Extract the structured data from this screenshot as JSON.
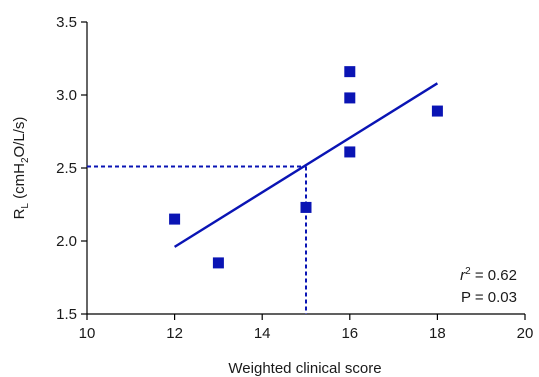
{
  "chart_data": {
    "type": "scatter",
    "xlabel": "Weighted clinical score",
    "ylabel_parts": {
      "main": "R",
      "sub": "L",
      "rest_a": " (cmH",
      "sub2": "2",
      "rest_b": "O/L/s)"
    },
    "xlim": [
      10,
      20
    ],
    "ylim": [
      1.5,
      3.5
    ],
    "x_ticks": [
      10,
      12,
      14,
      16,
      18,
      20
    ],
    "y_ticks": [
      "1.5",
      "2.0",
      "2.5",
      "3.0",
      "3.5"
    ],
    "points": [
      {
        "x": 12,
        "y": 2.15
      },
      {
        "x": 13,
        "y": 1.85
      },
      {
        "x": 15,
        "y": 2.23
      },
      {
        "x": 16,
        "y": 3.16
      },
      {
        "x": 16,
        "y": 2.98
      },
      {
        "x": 16,
        "y": 2.61
      },
      {
        "x": 18,
        "y": 2.89
      }
    ],
    "regression_line": {
      "x1": 12,
      "y1": 1.96,
      "x2": 18,
      "y2": 3.08
    },
    "reference_lines": {
      "x": 15,
      "y": 2.51
    },
    "annotation": {
      "r_symbol": "r",
      "r_exp": "2",
      "r_value": " = 0.62",
      "p_text": "P = 0.03"
    },
    "colors": {
      "points": "#0a14b4",
      "line": "#0a14b4",
      "reference": "#0a14b4"
    },
    "grid": false
  }
}
